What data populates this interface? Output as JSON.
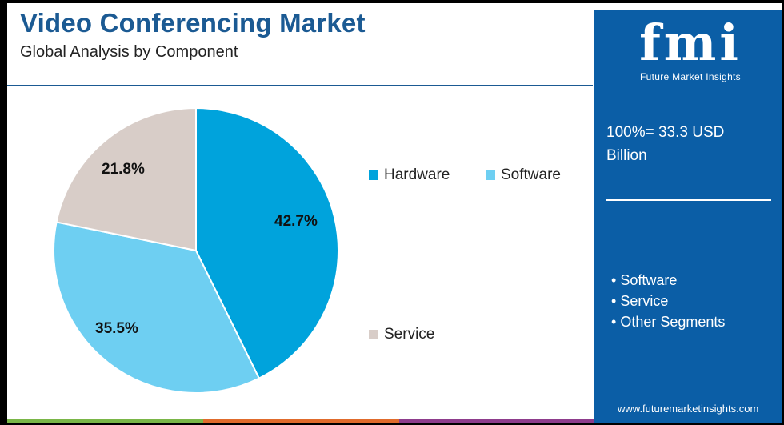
{
  "header": {
    "title": "Video Conferencing Market",
    "subtitle": "Global Analysis by Component"
  },
  "chart_data": {
    "type": "pie",
    "title": "Video Conferencing Market",
    "subtitle": "Global Analysis by Component",
    "slices": [
      {
        "label": "Hardware",
        "value": 42.7,
        "display": "42.7%",
        "color": "#00a3dc"
      },
      {
        "label": "Software",
        "value": 35.5,
        "display": "35.5%",
        "color": "#6ecff2"
      },
      {
        "label": "Service",
        "value": 21.8,
        "display": "21.8%",
        "color": "#d8cdc8"
      }
    ],
    "start_angle": "12 o'clock",
    "direction": "clockwise",
    "legend": [
      "Hardware",
      "Software",
      "Service"
    ]
  },
  "panel": {
    "logo_text": "fmi",
    "logo_subtitle": "Future Market Insights",
    "total_line1": "100%= 33.3 USD",
    "total_line2": "Billion",
    "segments": [
      "Software",
      "Service",
      "Other Segments"
    ],
    "website": "www.futuremarketinsights.com",
    "background": "#0b5ea6"
  },
  "bottom_bar_colors": [
    "#7ab648",
    "#e06b2c",
    "#8e3c8c"
  ]
}
